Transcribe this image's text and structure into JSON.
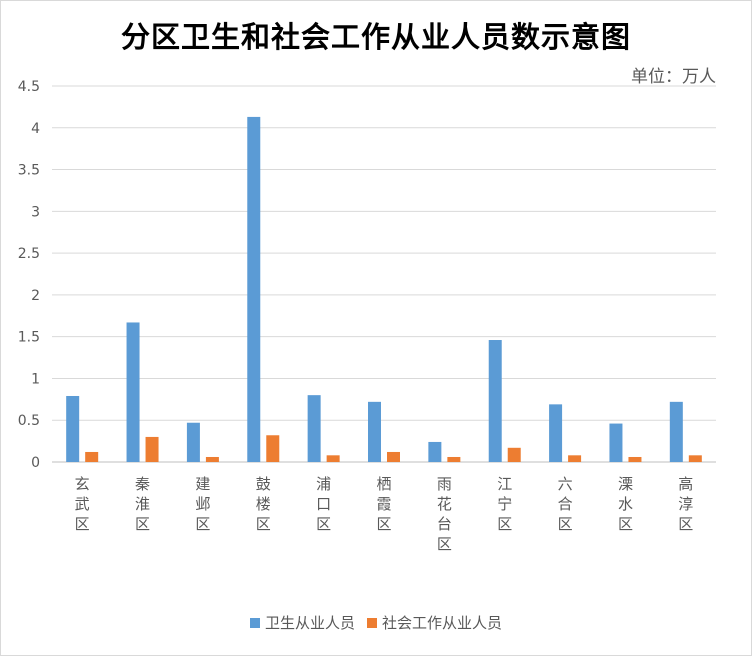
{
  "chart_data": {
    "type": "bar",
    "title": "分区卫生和社会工作从业人员数示意图",
    "unit_label": "单位：万人",
    "categories": [
      "玄武区",
      "秦淮区",
      "建邺区",
      "鼓楼区",
      "浦口区",
      "栖霞区",
      "雨花台区",
      "江宁区",
      "六合区",
      "溧水区",
      "高淳区"
    ],
    "series": [
      {
        "name": "卫生从业人员",
        "color": "#5b9bd5",
        "values": [
          0.79,
          1.67,
          0.47,
          4.13,
          0.8,
          0.72,
          0.24,
          1.46,
          0.69,
          0.46,
          0.72
        ]
      },
      {
        "name": "社会工作从业人员",
        "color": "#ed7d31",
        "values": [
          0.12,
          0.3,
          0.06,
          0.32,
          0.08,
          0.12,
          0.06,
          0.17,
          0.08,
          0.06,
          0.08
        ]
      }
    ],
    "ylim": [
      0,
      4.5
    ],
    "yticks": [
      "0",
      "0.5",
      "1",
      "1.5",
      "2",
      "2.5",
      "3",
      "3.5",
      "4",
      "4.5"
    ],
    "grid": true,
    "legend_position": "bottom"
  }
}
